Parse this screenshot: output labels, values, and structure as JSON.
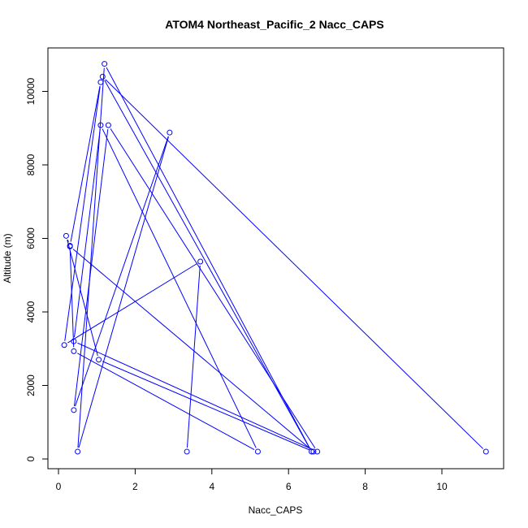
{
  "chart_data": {
    "type": "line",
    "title": "ATOM4 Northeast_Pacific_2 Nacc_CAPS",
    "xlabel": "Nacc_CAPS",
    "ylabel": "Altitude (m)",
    "xlim": [
      0,
      11.5
    ],
    "ylim": [
      -200,
      11000
    ],
    "x_ticks": [
      0,
      2,
      4,
      6,
      8,
      10
    ],
    "y_ticks": [
      0,
      2000,
      4000,
      6000,
      8000,
      10000
    ],
    "grid": false,
    "line_color": "#0000ff",
    "marker": "open-circle",
    "series": [
      {
        "x": [
          11.15,
          1.15,
          6.6,
          1.2,
          0.5,
          2.9,
          0.4,
          1.3,
          6.75,
          0.4,
          1.1,
          5.2,
          0.4,
          0.3,
          6.65,
          1.05,
          0.2,
          0.3,
          1.1,
          0.15,
          3.7,
          3.35
        ],
        "y": [
          200,
          10400,
          200,
          10750,
          200,
          8880,
          1330,
          9080,
          200,
          3200,
          9080,
          200,
          2930,
          5780,
          200,
          2700,
          6070,
          5800,
          10250,
          3100,
          5370,
          200
        ]
      }
    ]
  }
}
